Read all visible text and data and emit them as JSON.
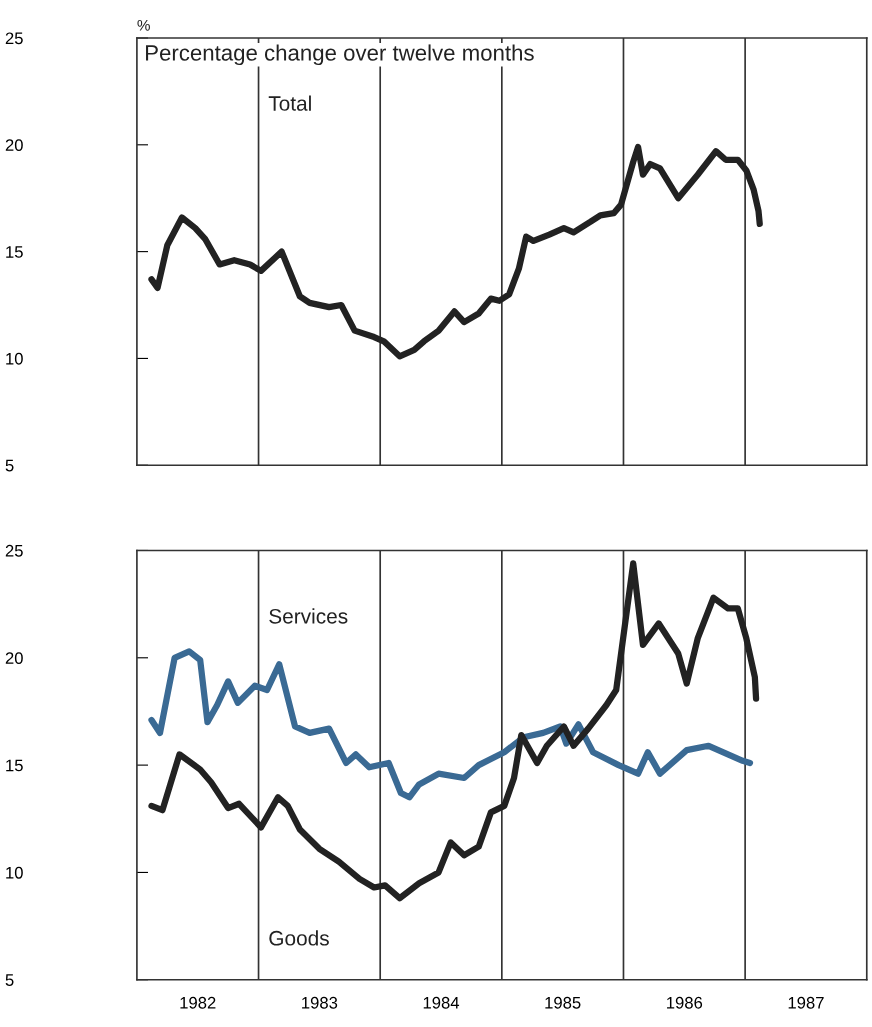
{
  "chart_data": [
    {
      "type": "line",
      "ylabel": "%",
      "subtitle": "Percentage change over twelve months",
      "xlim": [
        1982,
        1988
      ],
      "ylim": [
        5,
        25
      ],
      "yticks": [
        5,
        10,
        15,
        20,
        25
      ],
      "tick_labels": "y",
      "grid": false,
      "legend": false,
      "marker": "none",
      "line_style": "solid",
      "ref_lines": [
        {
          "axis": "x",
          "value": 1983,
          "color": "#333333"
        },
        {
          "axis": "x",
          "value": 1984,
          "color": "#333333"
        },
        {
          "axis": "x",
          "value": 1985,
          "color": "#333333"
        },
        {
          "axis": "x",
          "value": 1986,
          "color": "#333333"
        },
        {
          "axis": "x",
          "value": 1987,
          "color": "#333333"
        }
      ],
      "series": [
        {
          "name": "Total",
          "color": "#222222",
          "x": [
            1982.12,
            1982.17,
            1982.25,
            1982.37,
            1982.48,
            1982.56,
            1982.68,
            1982.8,
            1982.93,
            1983.02,
            1983.19,
            1983.34,
            1983.42,
            1983.58,
            1983.68,
            1983.79,
            1983.95,
            1984.03,
            1984.16,
            1984.28,
            1984.36,
            1984.48,
            1984.61,
            1984.69,
            1984.81,
            1984.91,
            1984.98,
            1985.06,
            1985.14,
            1985.2,
            1985.26,
            1985.39,
            1985.51,
            1985.59,
            1985.73,
            1985.81,
            1985.92,
            1985.98,
            1986.08,
            1986.12,
            1986.16,
            1986.22,
            1986.3,
            1986.45,
            1986.61,
            1986.76,
            1986.84,
            1986.94,
            1987.01,
            1987.07,
            1987.11,
            1987.12
          ],
          "values": [
            13.7,
            13.3,
            15.3,
            16.6,
            16.1,
            15.6,
            14.4,
            14.6,
            14.4,
            14.1,
            15.0,
            12.9,
            12.6,
            12.4,
            12.5,
            11.3,
            11.0,
            10.8,
            10.1,
            10.4,
            10.8,
            11.3,
            12.2,
            11.7,
            12.1,
            12.8,
            12.7,
            13.0,
            14.2,
            15.7,
            15.5,
            15.8,
            16.1,
            15.9,
            16.4,
            16.7,
            16.8,
            17.2,
            19.2,
            19.9,
            18.6,
            19.1,
            18.9,
            17.5,
            18.6,
            19.7,
            19.3,
            19.3,
            18.8,
            17.9,
            16.9,
            16.3
          ]
        }
      ]
    },
    {
      "type": "line",
      "xlim": [
        1982,
        1988
      ],
      "xticks": [
        {
          "value": 1982.5,
          "label": "1982"
        },
        {
          "value": 1983.5,
          "label": "1983"
        },
        {
          "value": 1984.5,
          "label": "1984"
        },
        {
          "value": 1985.5,
          "label": "1985"
        },
        {
          "value": 1986.5,
          "label": "1986"
        },
        {
          "value": 1987.5,
          "label": "1987"
        }
      ],
      "ylim": [
        5,
        25
      ],
      "yticks": [
        5,
        10,
        15,
        20,
        25
      ],
      "grid": false,
      "legend": false,
      "marker": "none",
      "line_style": "solid",
      "ref_lines": [
        {
          "axis": "x",
          "value": 1983,
          "color": "#333333"
        },
        {
          "axis": "x",
          "value": 1984,
          "color": "#333333"
        },
        {
          "axis": "x",
          "value": 1985,
          "color": "#333333"
        },
        {
          "axis": "x",
          "value": 1986,
          "color": "#333333"
        },
        {
          "axis": "x",
          "value": 1987,
          "color": "#333333"
        }
      ],
      "series": [
        {
          "name": "Services",
          "color": "#3a6a94",
          "x": [
            1982.12,
            1982.19,
            1982.31,
            1982.43,
            1982.52,
            1982.58,
            1982.66,
            1982.75,
            1982.83,
            1982.97,
            1983.07,
            1983.17,
            1983.3,
            1983.42,
            1983.58,
            1983.72,
            1983.8,
            1983.91,
            1984.07,
            1984.17,
            1984.24,
            1984.32,
            1984.48,
            1984.69,
            1984.81,
            1985.02,
            1985.18,
            1985.34,
            1985.48,
            1985.53,
            1985.63,
            1985.75,
            1985.96,
            1986.12,
            1986.2,
            1986.3,
            1986.52,
            1986.7,
            1986.98,
            1987.04
          ],
          "values": [
            17.1,
            16.5,
            20.0,
            20.3,
            19.9,
            17.0,
            17.8,
            18.9,
            17.9,
            18.7,
            18.5,
            19.7,
            16.8,
            16.5,
            16.7,
            15.1,
            15.5,
            14.9,
            15.1,
            13.7,
            13.5,
            14.1,
            14.6,
            14.4,
            15.0,
            15.6,
            16.3,
            16.5,
            16.8,
            16.0,
            16.9,
            15.6,
            15.0,
            14.6,
            15.6,
            14.6,
            15.7,
            15.9,
            15.2,
            15.1
          ]
        },
        {
          "name": "Goods",
          "color": "#222222",
          "x": [
            1982.12,
            1982.21,
            1982.35,
            1982.52,
            1982.61,
            1982.75,
            1982.84,
            1983.02,
            1983.16,
            1983.24,
            1983.34,
            1983.5,
            1983.66,
            1983.83,
            1983.95,
            1984.04,
            1984.16,
            1984.32,
            1984.48,
            1984.58,
            1984.69,
            1984.81,
            1984.91,
            1985.02,
            1985.1,
            1985.16,
            1985.29,
            1985.37,
            1985.51,
            1985.59,
            1985.71,
            1985.86,
            1985.94,
            1986.08,
            1986.16,
            1986.29,
            1986.45,
            1986.52,
            1986.61,
            1986.74,
            1986.86,
            1986.94,
            1987.01,
            1987.08,
            1987.09
          ],
          "values": [
            13.1,
            12.9,
            15.5,
            14.8,
            14.2,
            13.0,
            13.2,
            12.1,
            13.5,
            13.1,
            12.0,
            11.1,
            10.5,
            9.7,
            9.3,
            9.4,
            8.8,
            9.5,
            10.0,
            11.4,
            10.8,
            11.2,
            12.8,
            13.1,
            14.4,
            16.4,
            15.1,
            15.9,
            16.8,
            15.9,
            16.7,
            17.8,
            18.5,
            24.4,
            20.6,
            21.6,
            20.2,
            18.8,
            20.9,
            22.8,
            22.3,
            22.3,
            20.9,
            19.1,
            18.1
          ]
        }
      ]
    }
  ]
}
